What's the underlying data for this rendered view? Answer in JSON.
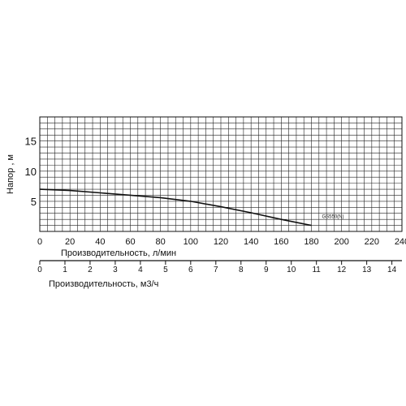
{
  "chart_data": {
    "type": "line",
    "ylabel": "Напор , м",
    "xlabel": "Производительность, л/мин",
    "xlabel2": "Производительность, м3/ч",
    "xlim": [
      0,
      240
    ],
    "ylim": [
      0,
      19
    ],
    "yticks": [
      5,
      10,
      15
    ],
    "xticks": [
      0,
      20,
      40,
      60,
      80,
      100,
      120,
      140,
      160,
      180,
      200,
      220,
      240
    ],
    "xlim2": [
      0,
      14.4
    ],
    "xticks2": [
      0,
      1,
      2,
      3,
      4,
      5,
      6,
      7,
      8,
      9,
      10,
      11,
      12,
      13,
      14
    ],
    "grid": true,
    "series": [
      {
        "name": "GS550(N)",
        "x": [
          0,
          20,
          40,
          60,
          80,
          100,
          120,
          140,
          160,
          180
        ],
        "y": [
          7.0,
          6.8,
          6.4,
          6.0,
          5.6,
          5.0,
          4.1,
          3.1,
          2.0,
          1.0
        ]
      }
    ]
  }
}
